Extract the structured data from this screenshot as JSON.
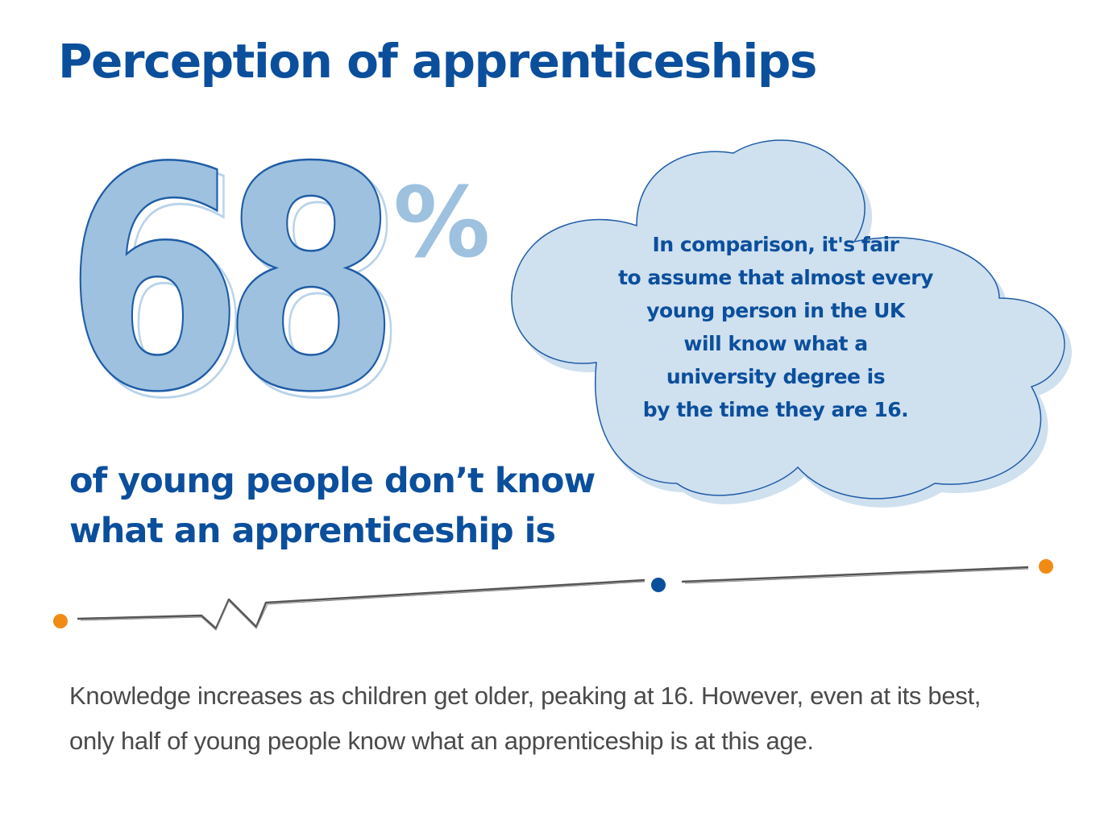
{
  "title": "Perception of apprenticeships",
  "stat": {
    "number": "68",
    "unit": "%",
    "caption_lines": [
      "of young people don’t know",
      "what an apprenticeship is"
    ]
  },
  "cloud": {
    "lines": [
      "In comparison, it's fair",
      "to assume that almost every",
      "young person in the UK",
      "will know what a",
      "university degree is",
      "by the time they are 16."
    ]
  },
  "body_lines": [
    "Knowledge increases as children get older, peaking at 16. However, even at its best,",
    "only half of young people know what an apprenticeship is at this age."
  ],
  "colors": {
    "brand_blue": "#0b4f9c",
    "light_blue": "#9dc1df",
    "cloud_fill": "#cfe0ef",
    "accent_orange": "#f08c14",
    "line_gray": "#555555",
    "body_text": "#4a4a4a"
  }
}
